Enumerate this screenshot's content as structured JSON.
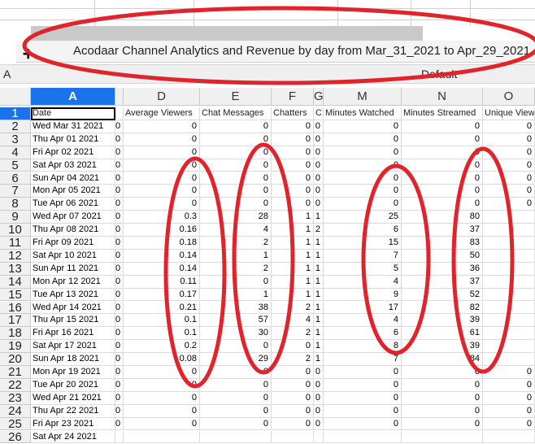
{
  "title": "Acodaar Channel Analytics and Revenue by day from Mar_31_2021 to Apr_29_2021",
  "name_box": "A",
  "style_box": "Default",
  "cutoff_text": "...",
  "active_cell_value": "Date",
  "columns": [
    {
      "letter": "A",
      "header": "Date"
    },
    {
      "letter": "",
      "header": ""
    },
    {
      "letter": "D",
      "header": "Average Viewers"
    },
    {
      "letter": "E",
      "header": "Chat Messages"
    },
    {
      "letter": "F",
      "header": "Chatters"
    },
    {
      "letter": "G",
      "header": "C"
    },
    {
      "letter": "M",
      "header": "Minutes Watched"
    },
    {
      "letter": "N",
      "header": "Minutes Streamed"
    },
    {
      "letter": "O",
      "header": "Unique Viewe"
    }
  ],
  "rows": [
    {
      "n": "1",
      "date": "Date"
    },
    {
      "n": "2",
      "date": "Wed Mar 31 2021",
      "b": "0",
      "d": "0",
      "e": "0",
      "f": "0",
      "g": "0",
      "m": "0",
      "nn": "0",
      "o": "0"
    },
    {
      "n": "3",
      "date": "Thu Apr 01 2021",
      "b": "0",
      "d": "0",
      "e": "0",
      "f": "0",
      "g": "0",
      "m": "0",
      "nn": "0",
      "o": "0"
    },
    {
      "n": "4",
      "date": "Fri Apr 02 2021",
      "b": "0",
      "d": "0",
      "e": "0",
      "f": "0",
      "g": "0",
      "m": "0",
      "nn": "0",
      "o": "0"
    },
    {
      "n": "5",
      "date": "Sat Apr 03 2021",
      "b": "0",
      "d": "0",
      "e": "0",
      "f": "0",
      "g": "0",
      "m": "0",
      "nn": "0",
      "o": "0"
    },
    {
      "n": "6",
      "date": "Sun Apr 04 2021",
      "b": "0",
      "d": "0",
      "e": "0",
      "f": "0",
      "g": "0",
      "m": "0",
      "nn": "0",
      "o": "0"
    },
    {
      "n": "7",
      "date": "Mon Apr 05 2021",
      "b": "0",
      "d": "0",
      "e": "0",
      "f": "0",
      "g": "0",
      "m": "0",
      "nn": "0",
      "o": "0"
    },
    {
      "n": "8",
      "date": "Tue Apr 06 2021",
      "b": "0",
      "d": "0",
      "e": "0",
      "f": "0",
      "g": "0",
      "m": "0",
      "nn": "0",
      "o": "0"
    },
    {
      "n": "9",
      "date": "Wed Apr 07 2021",
      "b": "0",
      "d": "0.3",
      "e": "28",
      "f": "1",
      "g": "1",
      "m": "25",
      "nn": "80",
      "o": ""
    },
    {
      "n": "10",
      "date": "Thu Apr 08 2021",
      "b": "0",
      "d": "0.16",
      "e": "4",
      "f": "1",
      "g": "2",
      "m": "6",
      "nn": "37",
      "o": ""
    },
    {
      "n": "11",
      "date": "Fri Apr 09 2021",
      "b": "0",
      "d": "0.18",
      "e": "2",
      "f": "1",
      "g": "1",
      "m": "15",
      "nn": "83",
      "o": ""
    },
    {
      "n": "12",
      "date": "Sat Apr 10 2021",
      "b": "0",
      "d": "0.14",
      "e": "1",
      "f": "1",
      "g": "1",
      "m": "7",
      "nn": "50",
      "o": ""
    },
    {
      "n": "13",
      "date": "Sun Apr 11 2021",
      "b": "0",
      "d": "0.14",
      "e": "2",
      "f": "1",
      "g": "1",
      "m": "5",
      "nn": "36",
      "o": ""
    },
    {
      "n": "14",
      "date": "Mon Apr 12 2021",
      "b": "0",
      "d": "0.11",
      "e": "0",
      "f": "1",
      "g": "1",
      "m": "4",
      "nn": "37",
      "o": ""
    },
    {
      "n": "15",
      "date": "Tue Apr 13 2021",
      "b": "0",
      "d": "0.17",
      "e": "1",
      "f": "1",
      "g": "1",
      "m": "9",
      "nn": "52",
      "o": ""
    },
    {
      "n": "16",
      "date": "Wed Apr 14 2021",
      "b": "0",
      "d": "0.21",
      "e": "38",
      "f": "2",
      "g": "1",
      "m": "17",
      "nn": "82",
      "o": ""
    },
    {
      "n": "17",
      "date": "Thu Apr 15 2021",
      "b": "0",
      "d": "0.1",
      "e": "57",
      "f": "4",
      "g": "1",
      "m": "4",
      "nn": "39",
      "o": ""
    },
    {
      "n": "18",
      "date": "Fri Apr 16 2021",
      "b": "0",
      "d": "0.1",
      "e": "30",
      "f": "2",
      "g": "1",
      "m": "6",
      "nn": "61",
      "o": ""
    },
    {
      "n": "19",
      "date": "Sat Apr 17 2021",
      "b": "0",
      "d": "0.2",
      "e": "0",
      "f": "0",
      "g": "1",
      "m": "8",
      "nn": "39",
      "o": ""
    },
    {
      "n": "20",
      "date": "Sun Apr 18 2021",
      "b": "0",
      "d": "0.08",
      "e": "29",
      "f": "2",
      "g": "1",
      "m": "7",
      "nn": "84",
      "o": ""
    },
    {
      "n": "21",
      "date": "Mon Apr 19 2021",
      "b": "0",
      "d": "0",
      "e": "0",
      "f": "0",
      "g": "0",
      "m": "0",
      "nn": "0",
      "o": "0"
    },
    {
      "n": "22",
      "date": "Tue Apr 20 2021",
      "b": "0",
      "d": "0",
      "e": "0",
      "f": "0",
      "g": "0",
      "m": "0",
      "nn": "0",
      "o": "0"
    },
    {
      "n": "23",
      "date": "Wed Apr 21 2021",
      "b": "0",
      "d": "0",
      "e": "0",
      "f": "0",
      "g": "0",
      "m": "0",
      "nn": "0",
      "o": "0"
    },
    {
      "n": "24",
      "date": "Thu Apr 22 2021",
      "b": "0",
      "d": "0",
      "e": "0",
      "f": "0",
      "g": "0",
      "m": "0",
      "nn": "0",
      "o": "0"
    },
    {
      "n": "25",
      "date": "Fri Apr 23 2021",
      "b": "0",
      "d": "0",
      "e": "0",
      "f": "0",
      "g": "0",
      "m": "0",
      "nn": "0",
      "o": "0"
    },
    {
      "n": "26",
      "date": "Sat Apr 24 2021",
      "b": "",
      "d": "",
      "e": "",
      "f": "",
      "g": "",
      "m": "",
      "nn": "",
      "o": ""
    }
  ],
  "colors": {
    "annotation": "#e0242b",
    "selection": "#1a73e8",
    "header_bg": "#f0f0f0",
    "grid": "#dcdcdc"
  }
}
